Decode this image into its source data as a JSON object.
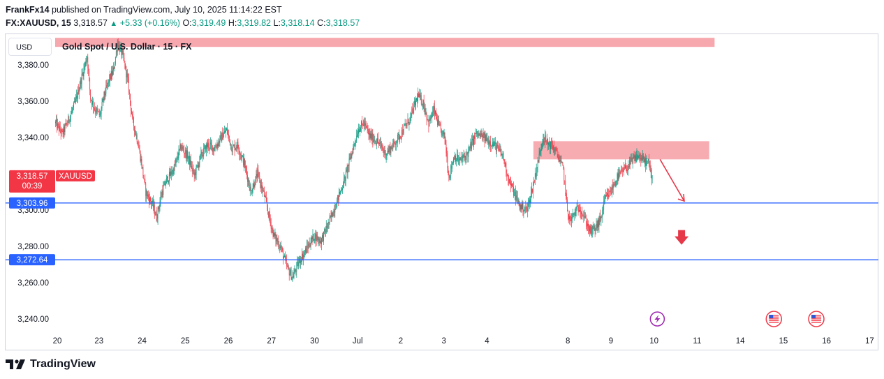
{
  "header": {
    "author": "FrankFx14",
    "published_text": "published on TradingView.com, July 10, 2025 11:14:22 EST",
    "symbol": "FX:XAUUSD, 15",
    "last": "3,318.57",
    "change": "+5.33 (+0.16%)",
    "o_label": "O:",
    "o_value": "3,319.49",
    "h_label": "H:",
    "h_value": "3,319.82",
    "l_label": "L:",
    "l_value": "3,318.14",
    "c_label": "C:",
    "c_value": "3,318.57"
  },
  "currency_button": "USD",
  "symbol_description": "Gold Spot / U.S. Dollar · 15 · FX",
  "footer_brand": "TradingView",
  "colors": {
    "up": "#089981",
    "down": "#f23645",
    "zone": "#f7a8ae",
    "hline": "#2962ff",
    "arrow": "#e5394a",
    "event": "#9c27b0"
  },
  "chart_data": {
    "type": "candlestick",
    "ylim": [
      3235,
      3397
    ],
    "y_ticks": [
      3240,
      3260,
      3280,
      3300,
      3320,
      3340,
      3360,
      3380
    ],
    "y_tick_labels": [
      "3,240.00",
      "3,260.00",
      "3,280.00",
      "3,300.00",
      "3,320.00",
      "3,340.00",
      "3,360.00",
      "3,380.00"
    ],
    "x_tick_labels": [
      {
        "label": "20",
        "bar": 0
      },
      {
        "label": "23",
        "bar": 62
      },
      {
        "label": "24",
        "bar": 126
      },
      {
        "label": "25",
        "bar": 190
      },
      {
        "label": "26",
        "bar": 254
      },
      {
        "label": "27",
        "bar": 318
      },
      {
        "label": "30",
        "bar": 382
      },
      {
        "label": "Jul",
        "bar": 446
      },
      {
        "label": "2",
        "bar": 510
      },
      {
        "label": "3",
        "bar": 574
      },
      {
        "label": "4",
        "bar": 638
      },
      {
        "label": "8",
        "bar": 758
      },
      {
        "label": "9",
        "bar": 822
      },
      {
        "label": "10",
        "bar": 886
      },
      {
        "label": "11",
        "bar": 950
      },
      {
        "label": "14",
        "bar": 1014
      },
      {
        "label": "15",
        "bar": 1078
      },
      {
        "label": "16",
        "bar": 1142
      },
      {
        "label": "17",
        "bar": 1206
      }
    ],
    "path_points": [
      [
        0,
        3348
      ],
      [
        10,
        3342
      ],
      [
        22,
        3352
      ],
      [
        30,
        3360
      ],
      [
        38,
        3372
      ],
      [
        47,
        3385
      ],
      [
        52,
        3362
      ],
      [
        58,
        3356
      ],
      [
        66,
        3352
      ],
      [
        72,
        3363
      ],
      [
        80,
        3372
      ],
      [
        86,
        3377
      ],
      [
        92,
        3392
      ],
      [
        100,
        3385
      ],
      [
        108,
        3370
      ],
      [
        114,
        3350
      ],
      [
        122,
        3338
      ],
      [
        128,
        3325
      ],
      [
        134,
        3310
      ],
      [
        144,
        3303
      ],
      [
        150,
        3296
      ],
      [
        158,
        3310
      ],
      [
        166,
        3317
      ],
      [
        176,
        3323
      ],
      [
        186,
        3335
      ],
      [
        196,
        3330
      ],
      [
        206,
        3319
      ],
      [
        216,
        3330
      ],
      [
        226,
        3336
      ],
      [
        236,
        3334
      ],
      [
        246,
        3340
      ],
      [
        254,
        3344
      ],
      [
        262,
        3334
      ],
      [
        270,
        3336
      ],
      [
        280,
        3326
      ],
      [
        290,
        3310
      ],
      [
        300,
        3320
      ],
      [
        310,
        3308
      ],
      [
        318,
        3295
      ],
      [
        324,
        3286
      ],
      [
        334,
        3280
      ],
      [
        344,
        3268
      ],
      [
        352,
        3263
      ],
      [
        362,
        3272
      ],
      [
        372,
        3278
      ],
      [
        384,
        3286
      ],
      [
        394,
        3283
      ],
      [
        406,
        3293
      ],
      [
        418,
        3305
      ],
      [
        430,
        3318
      ],
      [
        440,
        3332
      ],
      [
        450,
        3345
      ],
      [
        458,
        3348
      ],
      [
        466,
        3341
      ],
      [
        478,
        3338
      ],
      [
        490,
        3331
      ],
      [
        502,
        3336
      ],
      [
        514,
        3343
      ],
      [
        526,
        3350
      ],
      [
        538,
        3363
      ],
      [
        546,
        3359
      ],
      [
        554,
        3348
      ],
      [
        562,
        3355
      ],
      [
        570,
        3345
      ],
      [
        578,
        3340
      ],
      [
        584,
        3318
      ],
      [
        592,
        3330
      ],
      [
        600,
        3327
      ],
      [
        612,
        3331
      ],
      [
        624,
        3342
      ],
      [
        636,
        3340
      ],
      [
        648,
        3337
      ],
      [
        656,
        3334
      ],
      [
        664,
        3330
      ],
      [
        672,
        3318
      ],
      [
        680,
        3310
      ],
      [
        690,
        3302
      ],
      [
        700,
        3300
      ],
      [
        708,
        3312
      ],
      [
        716,
        3326
      ],
      [
        724,
        3341
      ],
      [
        730,
        3337
      ],
      [
        738,
        3335
      ],
      [
        746,
        3330
      ],
      [
        754,
        3322
      ],
      [
        760,
        3300
      ],
      [
        764,
        3294
      ],
      [
        770,
        3298
      ],
      [
        778,
        3302
      ],
      [
        786,
        3295
      ],
      [
        794,
        3288
      ],
      [
        802,
        3290
      ],
      [
        810,
        3296
      ],
      [
        816,
        3306
      ],
      [
        824,
        3310
      ],
      [
        834,
        3318
      ],
      [
        844,
        3322
      ],
      [
        854,
        3326
      ],
      [
        864,
        3330
      ],
      [
        874,
        3327
      ],
      [
        880,
        3326
      ],
      [
        886,
        3318
      ]
    ],
    "resistance_zone": {
      "y_low": 3328,
      "y_high": 3338,
      "x_start_bar": 710,
      "x_end_bar": 971
    },
    "top_zone": {
      "y_low": 3390,
      "y_high": 3395,
      "x_start_bar": 0,
      "x_end_bar": 979
    },
    "horizontal_lines": [
      {
        "value": 3303.96,
        "label": "3,303.96"
      },
      {
        "value": 3272.64,
        "label": "3,272.64"
      }
    ],
    "last_price_label": {
      "value": 3318.57,
      "price": "3,318.57",
      "countdown": "00:39",
      "symbol": "XAUUSD"
    },
    "projection_arrow": {
      "from": [
        898,
        3328
      ],
      "to": [
        934,
        3305
      ]
    },
    "down_arrow_marker": {
      "bar": 930,
      "value": 3284
    },
    "event_icons": [
      {
        "type": "lightning",
        "bar": 894
      },
      {
        "type": "us-flag",
        "bar": 1067
      },
      {
        "type": "us-flag",
        "bar": 1130
      }
    ]
  }
}
